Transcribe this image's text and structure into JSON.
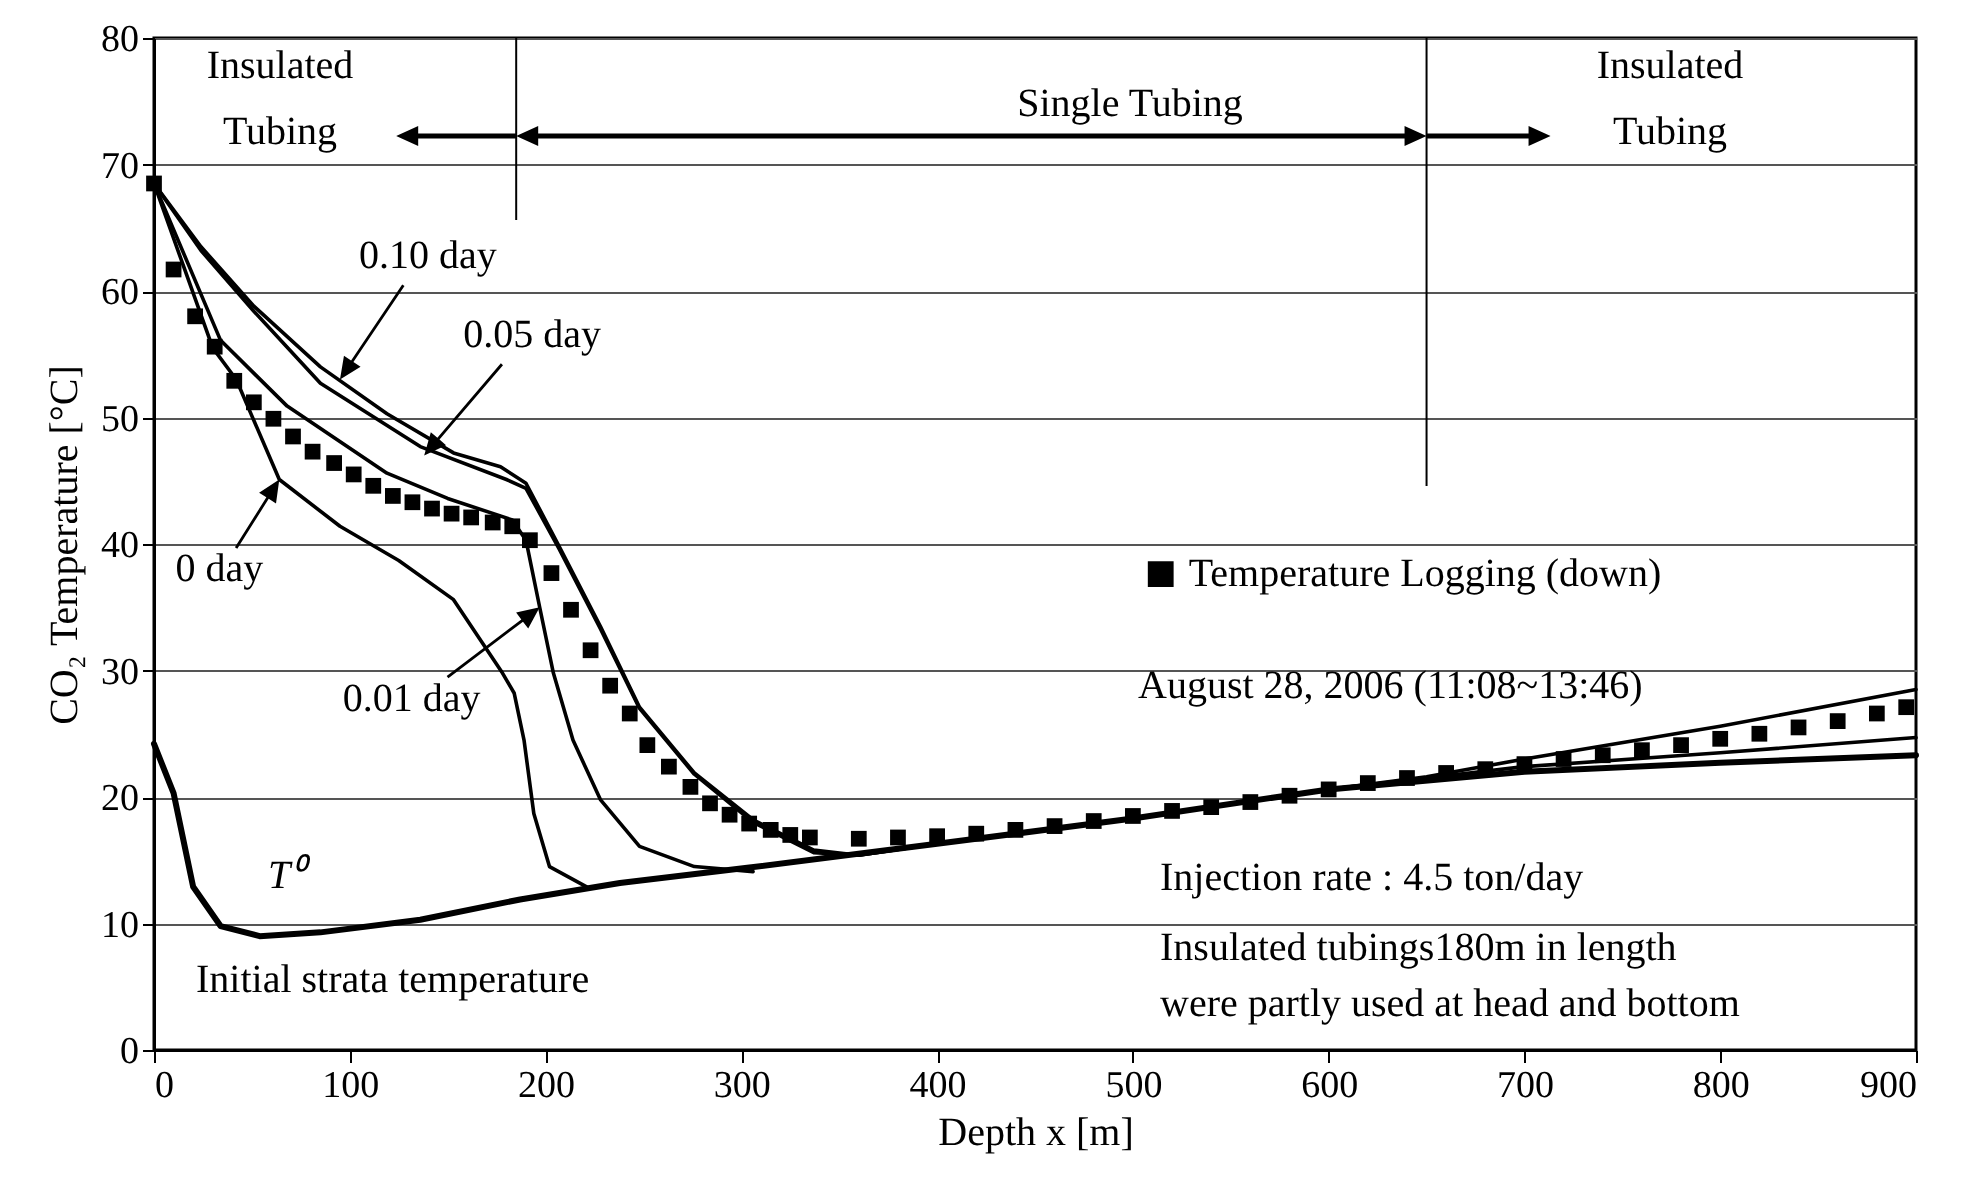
{
  "chart_data": {
    "type": "line",
    "xlabel": "Depth x [m]",
    "ylabel": "CO₂ Temperature [°C]",
    "xlim": [
      0,
      900
    ],
    "xticks": [
      0,
      100,
      200,
      300,
      400,
      500,
      600,
      700,
      800,
      900
    ],
    "ylim": [
      0,
      80
    ],
    "yticks": [
      0,
      10,
      20,
      30,
      40,
      50,
      60,
      70,
      80
    ],
    "grid": "y",
    "legend": "right",
    "line_style": "solid",
    "series": [
      {
        "color": "#000000",
        "x": [
          0,
          15,
          30,
          42,
          64,
          95,
          125,
          153,
          178,
          184,
          189,
          194,
          202,
          221
        ],
        "values": [
          68.5,
          62,
          55.5,
          53,
          45.1,
          41.4,
          38.7,
          35.6,
          29.8,
          28.2,
          24.5,
          18.7,
          14.5,
          12.9
        ]
      },
      {
        "color": "#000000",
        "x": [
          0,
          34,
          68,
          119,
          150,
          183,
          190,
          197,
          204,
          214,
          228,
          248,
          276,
          306
        ],
        "values": [
          68.5,
          56.1,
          50.9,
          45.6,
          43.6,
          41.9,
          40.3,
          35,
          29.8,
          24.5,
          19.8,
          16.1,
          14.5,
          14.1
        ]
      },
      {
        "color": "#000000",
        "x": [
          0,
          24,
          51,
          85,
          136,
          180,
          190,
          207,
          228,
          248,
          276,
          306,
          337,
          360,
          400,
          500,
          600,
          650,
          700,
          800,
          900
        ],
        "values": [
          68.5,
          63.2,
          58.4,
          52.7,
          47.7,
          45.1,
          44.4,
          39.6,
          33.3,
          27,
          21.8,
          18,
          15.6,
          15.4,
          16.3,
          18.3,
          20.6,
          21.5,
          22.4,
          23.5,
          24.7
        ]
      },
      {
        "color": "#000000",
        "x": [
          0,
          24,
          51,
          85,
          119,
          153,
          177,
          190,
          207,
          228,
          248,
          276,
          306,
          337,
          360,
          400,
          500,
          600,
          650,
          700,
          800,
          900
        ],
        "values": [
          68.5,
          63.5,
          58.8,
          54,
          50.3,
          47.2,
          46.1,
          44.8,
          39.8,
          33.5,
          27.1,
          21.9,
          18.2,
          15.8,
          15.4,
          16.3,
          18.3,
          20.6,
          21.6,
          23,
          25.6,
          28.5
        ]
      },
      {
        "color": "#000000",
        "x": [
          0,
          10,
          20,
          34,
          54,
          85,
          136,
          187,
          238,
          303,
          400,
          500,
          600,
          700,
          800,
          900
        ],
        "values": [
          24.2,
          20.3,
          12.9,
          9.8,
          9.0,
          9.3,
          10.3,
          11.9,
          13.2,
          14.4,
          16.3,
          18.3,
          20.6,
          22.0,
          22.7,
          23.3
        ]
      },
      {
        "type": "scatter",
        "name": "Temperature Logging (down)",
        "color": "#000000",
        "marker": "square",
        "x": [
          0,
          10,
          21,
          31,
          41,
          51,
          61,
          71,
          81,
          92,
          102,
          112,
          122,
          132,
          142,
          152,
          162,
          173,
          183,
          192,
          203,
          213,
          223,
          233,
          243,
          252,
          263,
          274,
          284,
          294,
          304,
          315,
          325,
          335,
          360,
          380,
          400,
          420,
          440,
          460,
          480,
          500,
          520,
          540,
          560,
          580,
          600,
          620,
          640,
          660,
          680,
          700,
          720,
          740,
          760,
          780,
          800,
          820,
          840,
          860,
          880,
          895
        ],
        "values": [
          68.5,
          61.7,
          58.0,
          55.6,
          52.9,
          51.2,
          49.9,
          48.5,
          47.3,
          46.4,
          45.5,
          44.6,
          43.8,
          43.3,
          42.8,
          42.4,
          42.1,
          41.7,
          41.4,
          40.3,
          37.7,
          34.8,
          31.6,
          28.8,
          26.6,
          24.1,
          22.4,
          20.8,
          19.5,
          18.6,
          17.9,
          17.4,
          17.0,
          16.8,
          16.7,
          16.8,
          16.9,
          17.1,
          17.4,
          17.7,
          18.1,
          18.5,
          18.9,
          19.2,
          19.6,
          20.1,
          20.6,
          21.1,
          21.5,
          21.9,
          22.2,
          22.6,
          23.0,
          23.3,
          23.7,
          24.1,
          24.6,
          25.0,
          25.5,
          26.0,
          26.6,
          27.1
        ]
      }
    ],
    "ref_lines": [
      {
        "axis": "x",
        "value": 185
      },
      {
        "axis": "x",
        "value": 650
      }
    ],
    "annotations": [
      {
        "text": "0.10 day",
        "x": 95,
        "y": 53
      },
      {
        "text": "0.05 day",
        "x": 138,
        "y": 47
      },
      {
        "text": "0 day",
        "x": 64,
        "y": 45.1
      },
      {
        "text": "0.01 day",
        "x": 197,
        "y": 35
      },
      "T⁰",
      "Insulated Tubing",
      "Single Tubing",
      "Insulated Tubing",
      "August 28, 2006 (11:08~13:46)",
      "Initial strata temperature",
      "Injection rate : 4.5 ton/day",
      "Insulated tubings180m in length",
      "were partly used at head and bottom"
    ]
  }
}
